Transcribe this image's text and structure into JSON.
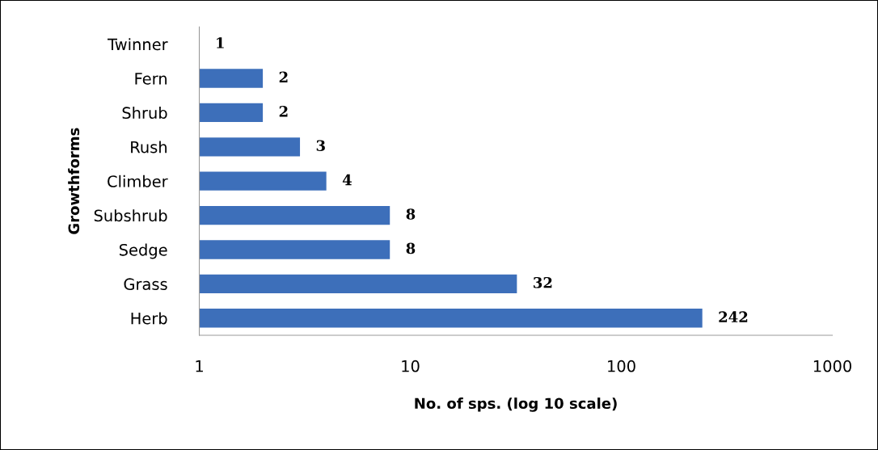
{
  "chart_data": {
    "type": "bar",
    "orientation": "horizontal",
    "log": "x",
    "xlabel": "No. of sps. (log 10 scale)",
    "ylabel": "Growthforms",
    "categories": [
      "Twinner",
      "Fern",
      "Shrub",
      "Rush",
      "Climber",
      "Subshrub",
      "Sedge",
      "Grass",
      "Herb"
    ],
    "values": [
      1,
      2,
      2,
      3,
      4,
      8,
      8,
      32,
      242
    ],
    "color": "#3d6fba",
    "data_labels": true,
    "xlim": [
      1,
      1000
    ],
    "xticks": [
      1,
      10,
      100,
      1000
    ],
    "grid": false,
    "legend": false
  }
}
